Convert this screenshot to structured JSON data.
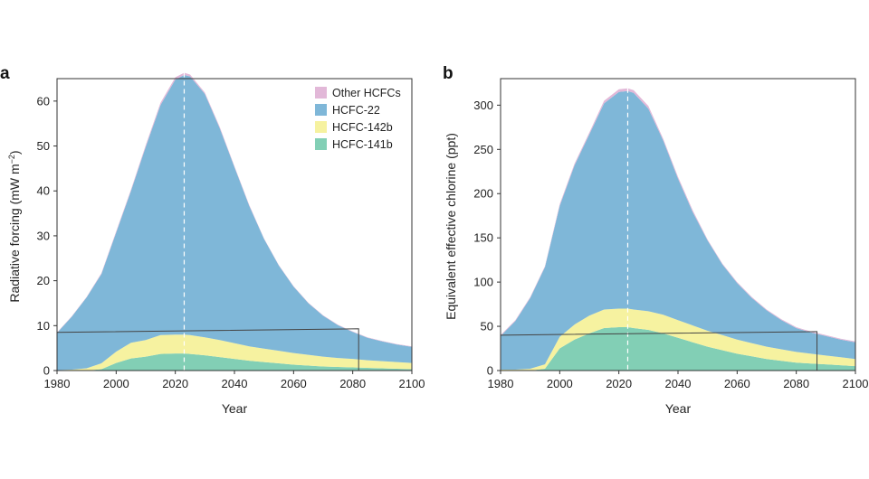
{
  "colors": {
    "other": "#e2b8d8",
    "hcfc22": "#7fb7d8",
    "hcfc142b": "#f6f2a0",
    "hcfc141b": "#82cfb5",
    "axis": "#333333",
    "dashed": "#ffffff",
    "box": "#444444"
  },
  "legend": [
    "Other HCFCs",
    "HCFC-22",
    "HCFC-142b",
    "HCFC-141b"
  ],
  "chart_data": [
    {
      "panel": "a",
      "type": "area",
      "title": "",
      "xlabel": "Year",
      "ylabel": "Radiative forcing (mW m",
      "ylabel_sup": "−2",
      "ylabel_close": ")",
      "xlim": [
        1980,
        2100
      ],
      "ylim": [
        0,
        65
      ],
      "xticks": [
        1980,
        2000,
        2020,
        2040,
        2060,
        2080,
        2100
      ],
      "yticks": [
        0,
        10,
        20,
        30,
        40,
        50,
        60
      ],
      "legend_position": "top-right",
      "peak_year": 2023,
      "x": [
        1980,
        1985,
        1990,
        1995,
        2000,
        2005,
        2010,
        2015,
        2020,
        2023,
        2025,
        2030,
        2035,
        2040,
        2045,
        2050,
        2055,
        2060,
        2065,
        2070,
        2075,
        2080,
        2085,
        2090,
        2095,
        2100
      ],
      "series": [
        {
          "name": "HCFC-141b",
          "values": [
            0,
            0,
            0,
            0.3,
            1.7,
            2.7,
            3.1,
            3.7,
            3.8,
            3.8,
            3.7,
            3.4,
            3.0,
            2.6,
            2.2,
            1.9,
            1.6,
            1.3,
            1.1,
            0.9,
            0.8,
            0.7,
            0.6,
            0.5,
            0.4,
            0.3
          ]
        },
        {
          "name": "HCFC-142b",
          "values": [
            0.1,
            0.2,
            0.5,
            1.3,
            2.5,
            3.5,
            3.7,
            4.2,
            4.2,
            4.2,
            4.2,
            4.0,
            3.8,
            3.5,
            3.2,
            3.0,
            2.8,
            2.6,
            2.4,
            2.2,
            2.0,
            1.9,
            1.7,
            1.6,
            1.5,
            1.4
          ]
        },
        {
          "name": "HCFC-22",
          "values": [
            8.3,
            11.8,
            15.8,
            19.9,
            26.5,
            33.8,
            43.0,
            51.2,
            56.8,
            57.8,
            57.6,
            54.2,
            47.2,
            39.2,
            31.3,
            24.4,
            19.0,
            14.8,
            11.5,
            9.1,
            7.3,
            6.0,
            5.0,
            4.4,
            3.9,
            3.6
          ]
        },
        {
          "name": "Other HCFCs",
          "values": [
            0.1,
            0.1,
            0.1,
            0.2,
            0.3,
            0.3,
            0.4,
            0.5,
            0.5,
            0.5,
            0.4,
            0.3,
            0.3,
            0.2,
            0.2,
            0.1,
            0.1,
            0.1,
            0.1,
            0.1,
            0.1,
            0.1,
            0.1,
            0.1,
            0.1,
            0.1
          ]
        }
      ],
      "box": {
        "x0": 1980,
        "x1": 2082,
        "y_left": 8.5,
        "y_right": 9.3
      }
    },
    {
      "panel": "b",
      "type": "area",
      "title": "",
      "xlabel": "Year",
      "ylabel": "Equivalent effective chlorine (ppt)",
      "xlim": [
        1980,
        2100
      ],
      "ylim": [
        0,
        330
      ],
      "xticks": [
        1980,
        2000,
        2020,
        2040,
        2060,
        2080,
        2100
      ],
      "yticks": [
        0,
        50,
        100,
        150,
        200,
        250,
        300
      ],
      "peak_year": 2023,
      "x": [
        1980,
        1985,
        1990,
        1995,
        2000,
        2005,
        2010,
        2015,
        2020,
        2023,
        2025,
        2030,
        2035,
        2040,
        2045,
        2050,
        2055,
        2060,
        2065,
        2070,
        2075,
        2080,
        2085,
        2090,
        2095,
        2100
      ],
      "series": [
        {
          "name": "HCFC-141b",
          "values": [
            0,
            0,
            0,
            2,
            25,
            35,
            42,
            48,
            49,
            49,
            48,
            46,
            42,
            37,
            32,
            27,
            23,
            19,
            16,
            13,
            11,
            9,
            8,
            7,
            6,
            5
          ]
        },
        {
          "name": "HCFC-142b",
          "values": [
            1,
            1,
            2,
            5,
            13,
            17,
            20,
            21,
            21,
            21,
            21,
            21,
            21,
            20,
            19,
            18,
            17,
            16,
            15,
            14,
            13,
            12,
            11,
            10,
            9,
            8
          ]
        },
        {
          "name": "HCFC-22",
          "values": [
            38,
            55,
            80,
            110,
            148,
            180,
            205,
            233,
            245,
            246,
            245,
            229,
            197,
            160,
            128,
            102,
            80,
            64,
            51,
            41,
            33,
            27,
            24,
            22,
            20,
            19
          ]
        },
        {
          "name": "Other HCFCs",
          "values": [
            1,
            1,
            1,
            1,
            2,
            2,
            2,
            3,
            3,
            3,
            3,
            3,
            2,
            2,
            2,
            1,
            1,
            1,
            1,
            1,
            1,
            1,
            1,
            1,
            1,
            1
          ]
        }
      ],
      "box": {
        "x0": 1980,
        "x1": 2087,
        "y_left": 40,
        "y_right": 44
      }
    }
  ]
}
